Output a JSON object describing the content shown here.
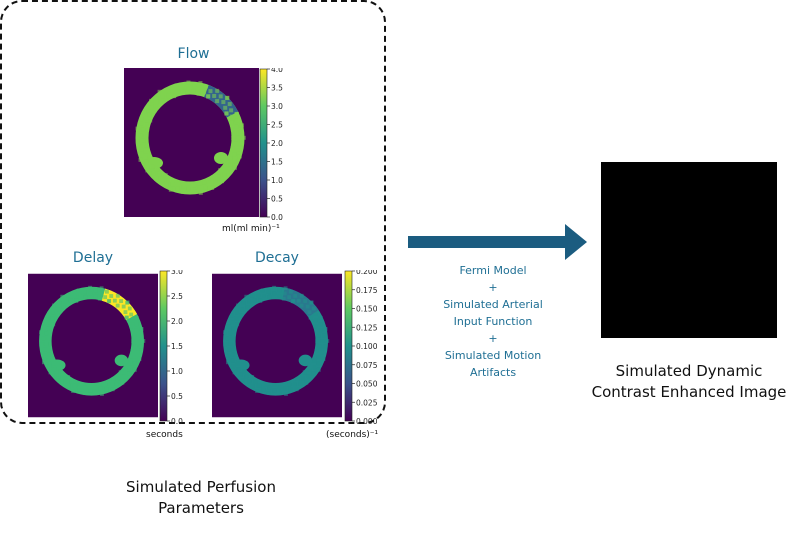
{
  "maps": [
    {
      "title": "Flow",
      "unit": "ml(ml min)⁻¹",
      "ticks": [
        "4.0",
        "3.5",
        "3.0",
        "2.5",
        "2.0",
        "1.5",
        "1.0",
        "0.5",
        "0.0"
      ],
      "ring_color": "#7fd34e",
      "segment_color": "#33638d"
    },
    {
      "title": "Delay",
      "unit": "seconds",
      "ticks": [
        "3.0",
        "2.5",
        "2.0",
        "1.5",
        "1.0",
        "0.5",
        "0.0"
      ],
      "ring_color": "#3cbb75",
      "segment_color": "#fde725"
    },
    {
      "title": "Decay",
      "unit": "(seconds)⁻¹",
      "ticks": [
        "0.200",
        "0.175",
        "0.150",
        "0.125",
        "0.100",
        "0.075",
        "0.050",
        "0.025",
        "0.000"
      ],
      "ring_color": "#218f8d",
      "segment_color": "#2a788e"
    }
  ],
  "left_caption": [
    "Simulated Perfusion",
    "Parameters"
  ],
  "steps": [
    "Fermi Model",
    "+",
    "Simulated Arterial",
    "Input Function",
    "+",
    "Simulated Motion",
    "Artifacts"
  ],
  "right_caption": [
    "Simulated Dynamic",
    "Contrast Enhanced Image"
  ],
  "colors": {
    "accent": "#1f6f94",
    "arrow": "#1b5c80",
    "background_map": "#440154",
    "output_image": "#000000"
  }
}
